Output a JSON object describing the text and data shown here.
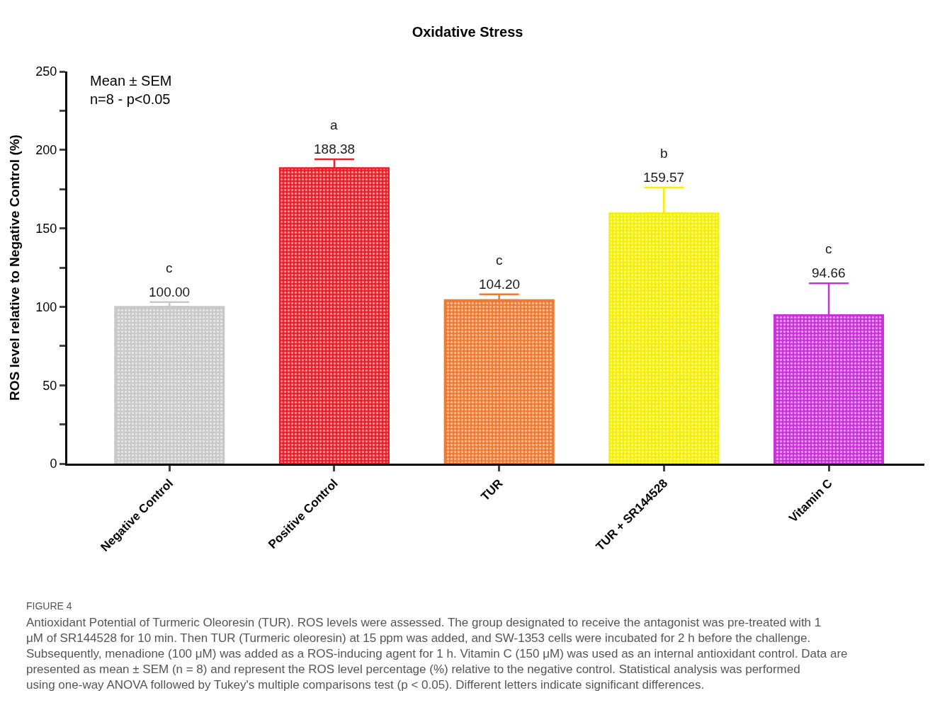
{
  "chart_data": {
    "type": "bar",
    "title": "Oxidative Stress",
    "ylabel": "ROS level relative to Negative Control (%)",
    "categories": [
      "Negative Control",
      "Positive Control",
      "TUR",
      "TUR + SR144528",
      "Vitamin C"
    ],
    "values": [
      100.0,
      188.38,
      104.2,
      159.57,
      94.66
    ],
    "value_labels": [
      "100.00",
      "188.38",
      "104.20",
      "159.57",
      "94.66"
    ],
    "errors": [
      [
        100.0,
        103
      ],
      [
        188.38,
        194
      ],
      [
        104.2,
        108
      ],
      [
        159.57,
        176
      ],
      [
        94.66,
        115
      ]
    ],
    "colors": [
      "#c8c8c8",
      "#e8202a",
      "#f07a30",
      "#f4f000",
      "#c832d8"
    ],
    "ylim": [
      0,
      250
    ],
    "yticks": [
      0,
      {
        "value": 25,
        "label": null
      },
      50,
      {
        "value": 75,
        "label": null
      },
      100,
      {
        "value": 125,
        "label": null
      },
      150,
      {
        "value": 175,
        "label": null
      },
      200,
      {
        "value": 225,
        "label": null
      },
      250
    ],
    "annotations": [
      "c",
      "a",
      "c",
      "b",
      "c",
      "Mean ± SEM\nn=8 - p<0.05",
      "FIGURE 4",
      "Antioxidant Potential of Turmeric Oleoresin (TUR). ROS levels were assessed. The group designated to receive the antagonist was pre-treated with 1 μM of SR144528 for 10 min. Then TUR (Turmeric oleoresin) at 15 ppm was added, and SW-1353 cells were incubated for 2 h before the challenge. Subsequently, menadione (100 μM) was added as a ROS-inducing agent for 1 h. Vitamin C (150 μM) was used as an internal antioxidant control. Data are presented as mean ± SEM (n = 8) and represent the ROS level percentage (%) relative to the negative control. Statistical analysis was performed using one-way ANOVA followed by Tukey's multiple comparisons test (p < 0.05). Different letters indicate significant differences."
    ]
  }
}
